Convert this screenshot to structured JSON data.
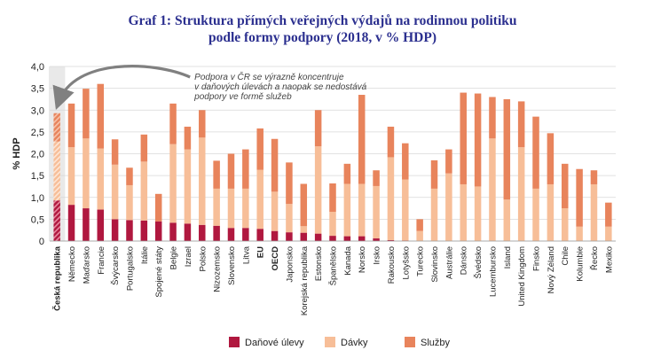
{
  "title_lines": [
    "Graf 1: Struktura přímých veřejných výdajů na rodinnou politiku",
    "podle formy podpory (2018, v % HDP)"
  ],
  "colors": {
    "tax": "#b0183f",
    "cash": "#f7be98",
    "services": "#e8845c",
    "highlight_band": "#e9e9e9",
    "grid": "#d8d8d8"
  },
  "chart_data": {
    "type": "bar",
    "stacked": true,
    "title": "Graf 1: Struktura přímých veřejných výdajů na rodinnou politiku podle formy podpory (2018, v % HDP)",
    "xlabel": "",
    "ylabel": "% HDP",
    "ylim": [
      0,
      4
    ],
    "yticks": [
      "0",
      "0,5",
      "1,0",
      "1,5",
      "2,0",
      "2,5",
      "3,0",
      "3,5",
      "4,0"
    ],
    "grid": true,
    "legend_position": "bottom",
    "highlight_category": "Česká republika",
    "bold_categories": [
      "Česká republika",
      "EU",
      "OECD"
    ],
    "categories": [
      "Česká republika",
      "Německo",
      "Maďarsko",
      "Francie",
      "Švýcarsko",
      "Portugalsko",
      "Itálie",
      "Spojené státy",
      "Belgie",
      "Izrael",
      "Polsko",
      "Nizozemsko",
      "Slovensko",
      "Litva",
      "EU",
      "OECD",
      "Japonsko",
      "Korejská republika",
      "Estonsko",
      "Španělsko",
      "Kanada",
      "Norsko",
      "Irsko",
      "Rakousko",
      "Lotyšsko",
      "Turecko",
      "Slovinsko",
      "Austrálie",
      "Dánsko",
      "Švédsko",
      "Lucembursko",
      "Island",
      "United Kingdom",
      "Finsko",
      "Nový Zéland",
      "Chile",
      "Kolumbie",
      "Řecko",
      "Mexiko"
    ],
    "series": [
      {
        "name": "Daňové úlevy",
        "values": [
          0.93,
          0.83,
          0.75,
          0.72,
          0.5,
          0.48,
          0.47,
          0.45,
          0.42,
          0.4,
          0.37,
          0.35,
          0.3,
          0.3,
          0.28,
          0.23,
          0.2,
          0.19,
          0.17,
          0.12,
          0.11,
          0.11,
          0.06,
          0.02,
          0.01,
          0.0,
          0.0,
          0.0,
          0.0,
          0.0,
          0.0,
          0.0,
          0.0,
          0.0,
          0.0,
          0.0,
          0.0,
          0.0,
          0.0
        ]
      },
      {
        "name": "Dávky",
        "values": [
          1.35,
          1.32,
          1.6,
          1.4,
          1.25,
          0.8,
          1.35,
          0.0,
          1.8,
          1.7,
          2.0,
          0.85,
          0.9,
          0.9,
          1.35,
          0.9,
          0.65,
          0.15,
          2.0,
          0.55,
          1.2,
          1.2,
          1.2,
          1.9,
          1.4,
          0.23,
          1.2,
          1.55,
          1.3,
          1.25,
          2.35,
          0.95,
          2.15,
          1.2,
          1.3,
          0.75,
          0.33,
          1.3,
          0.33
        ]
      },
      {
        "name": "Služby",
        "values": [
          0.65,
          1.0,
          1.14,
          1.48,
          0.58,
          0.4,
          0.62,
          0.63,
          0.93,
          0.52,
          0.63,
          0.64,
          0.8,
          0.9,
          0.95,
          1.21,
          0.95,
          0.97,
          0.83,
          0.65,
          0.46,
          2.04,
          0.36,
          0.7,
          0.83,
          0.27,
          0.65,
          0.55,
          2.1,
          2.13,
          0.95,
          2.3,
          1.05,
          1.65,
          1.17,
          1.02,
          1.32,
          0.32,
          0.55
        ]
      }
    ],
    "annotation": {
      "lines": [
        "Podpora v ČR se výrazně koncentruje",
        "v daňových úlevách a naopak se nedostává",
        "podpory ve formě služeb"
      ],
      "target": "Česká republika"
    }
  }
}
